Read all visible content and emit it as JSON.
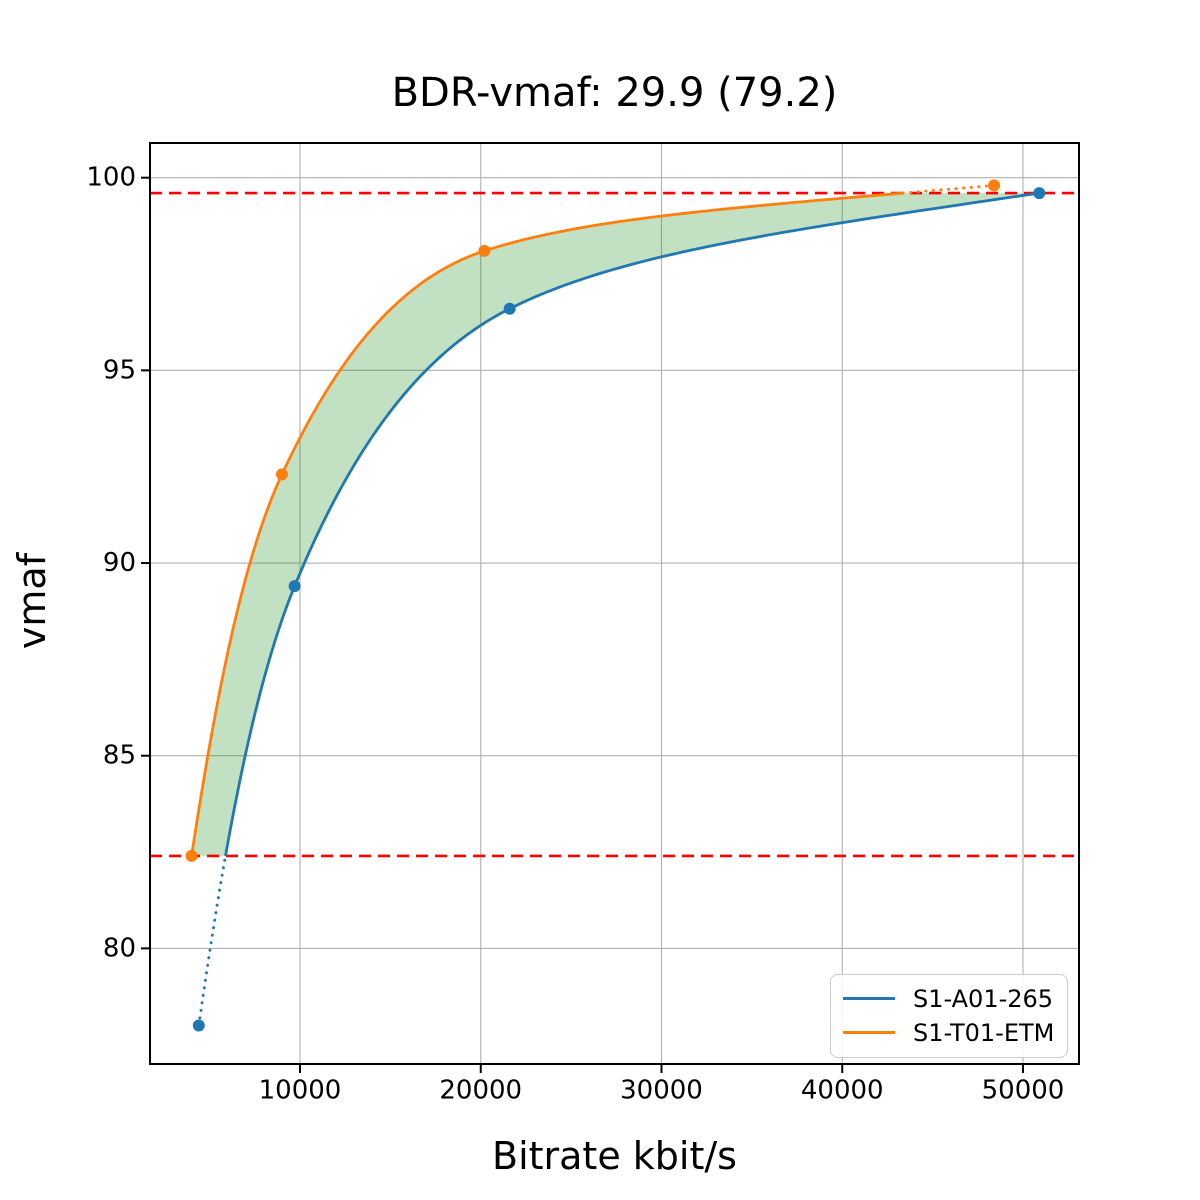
{
  "chart_data": {
    "type": "line",
    "title": "BDR-vmaf: 29.9 (79.2)",
    "xlabel": "Bitrate kbit/s",
    "ylabel": "vmaf",
    "xlim": [
      1700,
      53100
    ],
    "ylim": [
      77.0,
      100.9
    ],
    "x_ticks": [
      10000,
      20000,
      30000,
      40000,
      50000
    ],
    "y_ticks": [
      80,
      85,
      90,
      95,
      100
    ],
    "grid": true,
    "grid_color": "#b0b0b0",
    "legend_position": "lower right",
    "series": [
      {
        "name": "S1-A01-265",
        "color": "#1f77b4",
        "x": [
          4400,
          9700,
          21600,
          50900
        ],
        "y": [
          78.0,
          89.4,
          96.6,
          99.6
        ]
      },
      {
        "name": "S1-T01-ETM",
        "color": "#ff7f0e",
        "x": [
          4000,
          9000,
          20200,
          48400
        ],
        "y": [
          82.4,
          92.3,
          98.1,
          99.8
        ]
      }
    ],
    "reference_lines": {
      "upper": 99.6,
      "lower": 82.4,
      "color": "#ff0000",
      "style": "dashed"
    },
    "shaded_region": {
      "color": "#008000",
      "opacity": 0.24,
      "description": "area between the two rate-distortion curves inside the overlap range"
    }
  }
}
